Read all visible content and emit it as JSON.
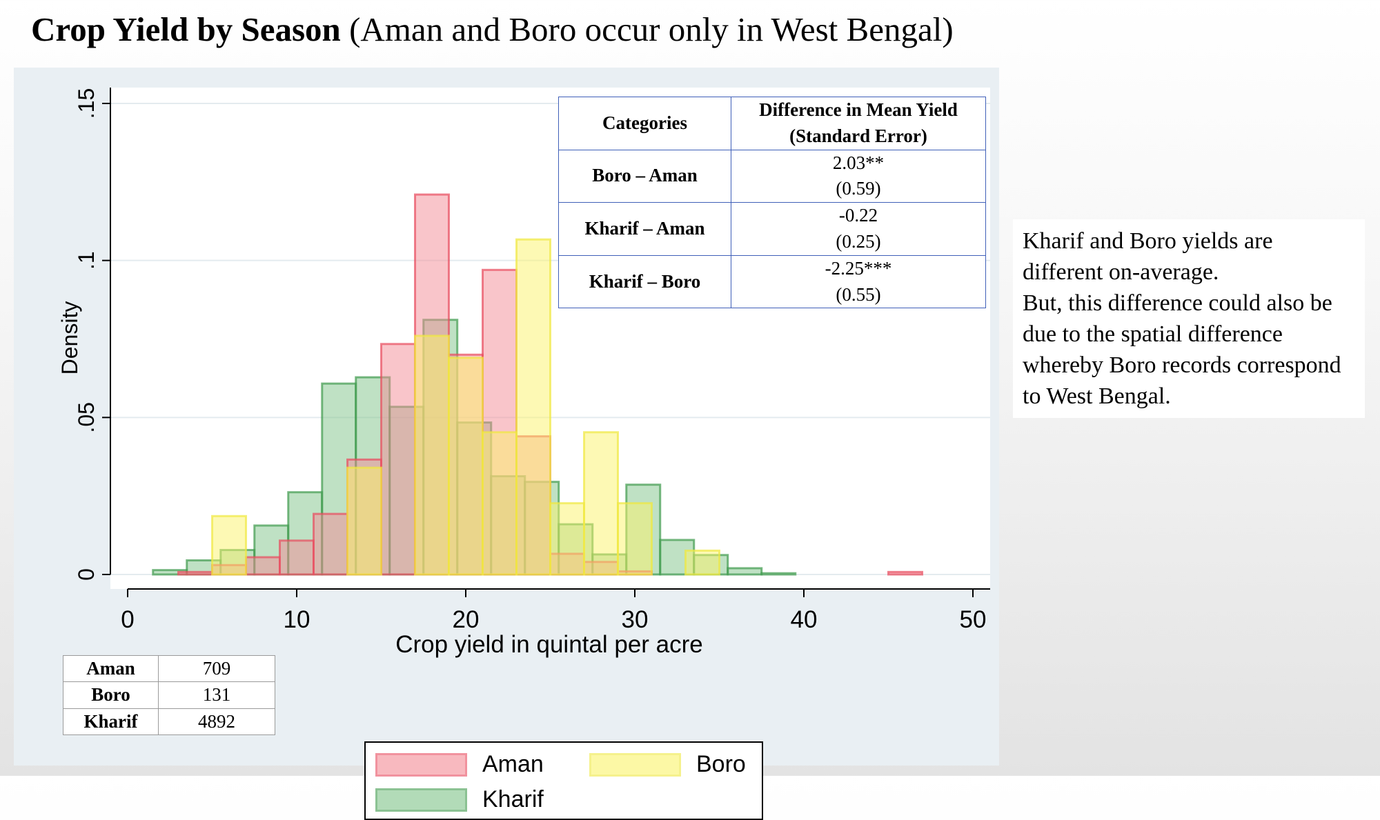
{
  "title": {
    "bold": "Crop Yield by Season",
    "rest": " (Aman and Boro occur only in West Bengal)"
  },
  "chart_data": {
    "type": "bar",
    "subtype": "overlaid-histogram",
    "xlabel": "Crop yield in quintal per acre",
    "ylabel": "Density",
    "xlim": [
      0,
      50
    ],
    "ylim": [
      0,
      0.15
    ],
    "xticks": [
      "0",
      "10",
      "20",
      "30",
      "40",
      "50"
    ],
    "yticks": [
      ".15",
      ".1",
      ".05",
      "0"
    ],
    "ytick_values": [
      0.15,
      0.1,
      0.05,
      0
    ],
    "xtick_values": [
      0,
      10,
      20,
      30,
      40,
      50
    ],
    "grid": true,
    "legend_position": "bottom",
    "bin_width": 2,
    "series": [
      {
        "name": "Kharif",
        "fill": "#7fc48a",
        "stroke": "#3f9a4d",
        "bins": [
          [
            1.5,
            0.0014
          ],
          [
            3.5,
            0.0045
          ],
          [
            5.5,
            0.0078
          ],
          [
            7.5,
            0.0156
          ],
          [
            9.5,
            0.0262
          ],
          [
            11.5,
            0.0608
          ],
          [
            13.5,
            0.0628
          ],
          [
            15.5,
            0.0534
          ],
          [
            17.5,
            0.0811
          ],
          [
            19.5,
            0.0484
          ],
          [
            21.5,
            0.0313
          ],
          [
            23.5,
            0.0295
          ],
          [
            25.5,
            0.016
          ],
          [
            27.5,
            0.0064
          ],
          [
            29.5,
            0.0286
          ],
          [
            31.5,
            0.011
          ],
          [
            33.5,
            0.0062
          ],
          [
            35.5,
            0.002
          ],
          [
            37.5,
            0.0004
          ]
        ]
      },
      {
        "name": "Aman",
        "fill": "#f48b95",
        "stroke": "#e84b5e",
        "bins": [
          [
            3,
            0.0008
          ],
          [
            5,
            0.003
          ],
          [
            7,
            0.0055
          ],
          [
            9,
            0.0108
          ],
          [
            11,
            0.0193
          ],
          [
            13,
            0.0366
          ],
          [
            15,
            0.0734
          ],
          [
            17,
            0.121
          ],
          [
            19,
            0.07
          ],
          [
            21,
            0.097
          ],
          [
            23,
            0.044
          ],
          [
            25,
            0.0066
          ],
          [
            27,
            0.004
          ],
          [
            29,
            0.001
          ],
          [
            45,
            0.0008
          ]
        ]
      },
      {
        "name": "Boro",
        "fill": "#fbf46a",
        "stroke": "#f0e840",
        "bins": [
          [
            5,
            0.0186
          ],
          [
            13,
            0.034
          ],
          [
            17,
            0.076
          ],
          [
            19,
            0.069
          ],
          [
            21,
            0.0453
          ],
          [
            23,
            0.1067
          ],
          [
            25,
            0.0227
          ],
          [
            27,
            0.0453
          ],
          [
            29,
            0.0227
          ],
          [
            33,
            0.0076
          ]
        ]
      }
    ]
  },
  "legend": [
    {
      "label": "Aman",
      "fill": "#f48b95",
      "stroke": "#e84b5e"
    },
    {
      "label": "Boro",
      "fill": "#fbf46a",
      "stroke": "#f0e840"
    },
    {
      "label": "Kharif",
      "fill": "#7fc48a",
      "stroke": "#3f9a4d"
    }
  ],
  "diff_table": {
    "header": [
      "Categories",
      "Difference in Mean Yield",
      "(Standard Error)"
    ],
    "rows": [
      {
        "category": "Boro – Aman",
        "diff": "2.03**",
        "se": "(0.59)"
      },
      {
        "category": "Kharif – Aman",
        "diff": "-0.22",
        "se": "(0.25)"
      },
      {
        "category": "Kharif – Boro",
        "diff": "-2.25***",
        "se": "(0.55)"
      }
    ]
  },
  "counts_table": [
    {
      "name": "Aman",
      "count": "709"
    },
    {
      "name": "Boro",
      "count": "131"
    },
    {
      "name": "Kharif",
      "count": "4892"
    }
  ],
  "note": [
    "Kharif and Boro yields are different on-average.",
    "But, this difference could also be due to the spatial difference whereby Boro records correspond to West Bengal."
  ]
}
